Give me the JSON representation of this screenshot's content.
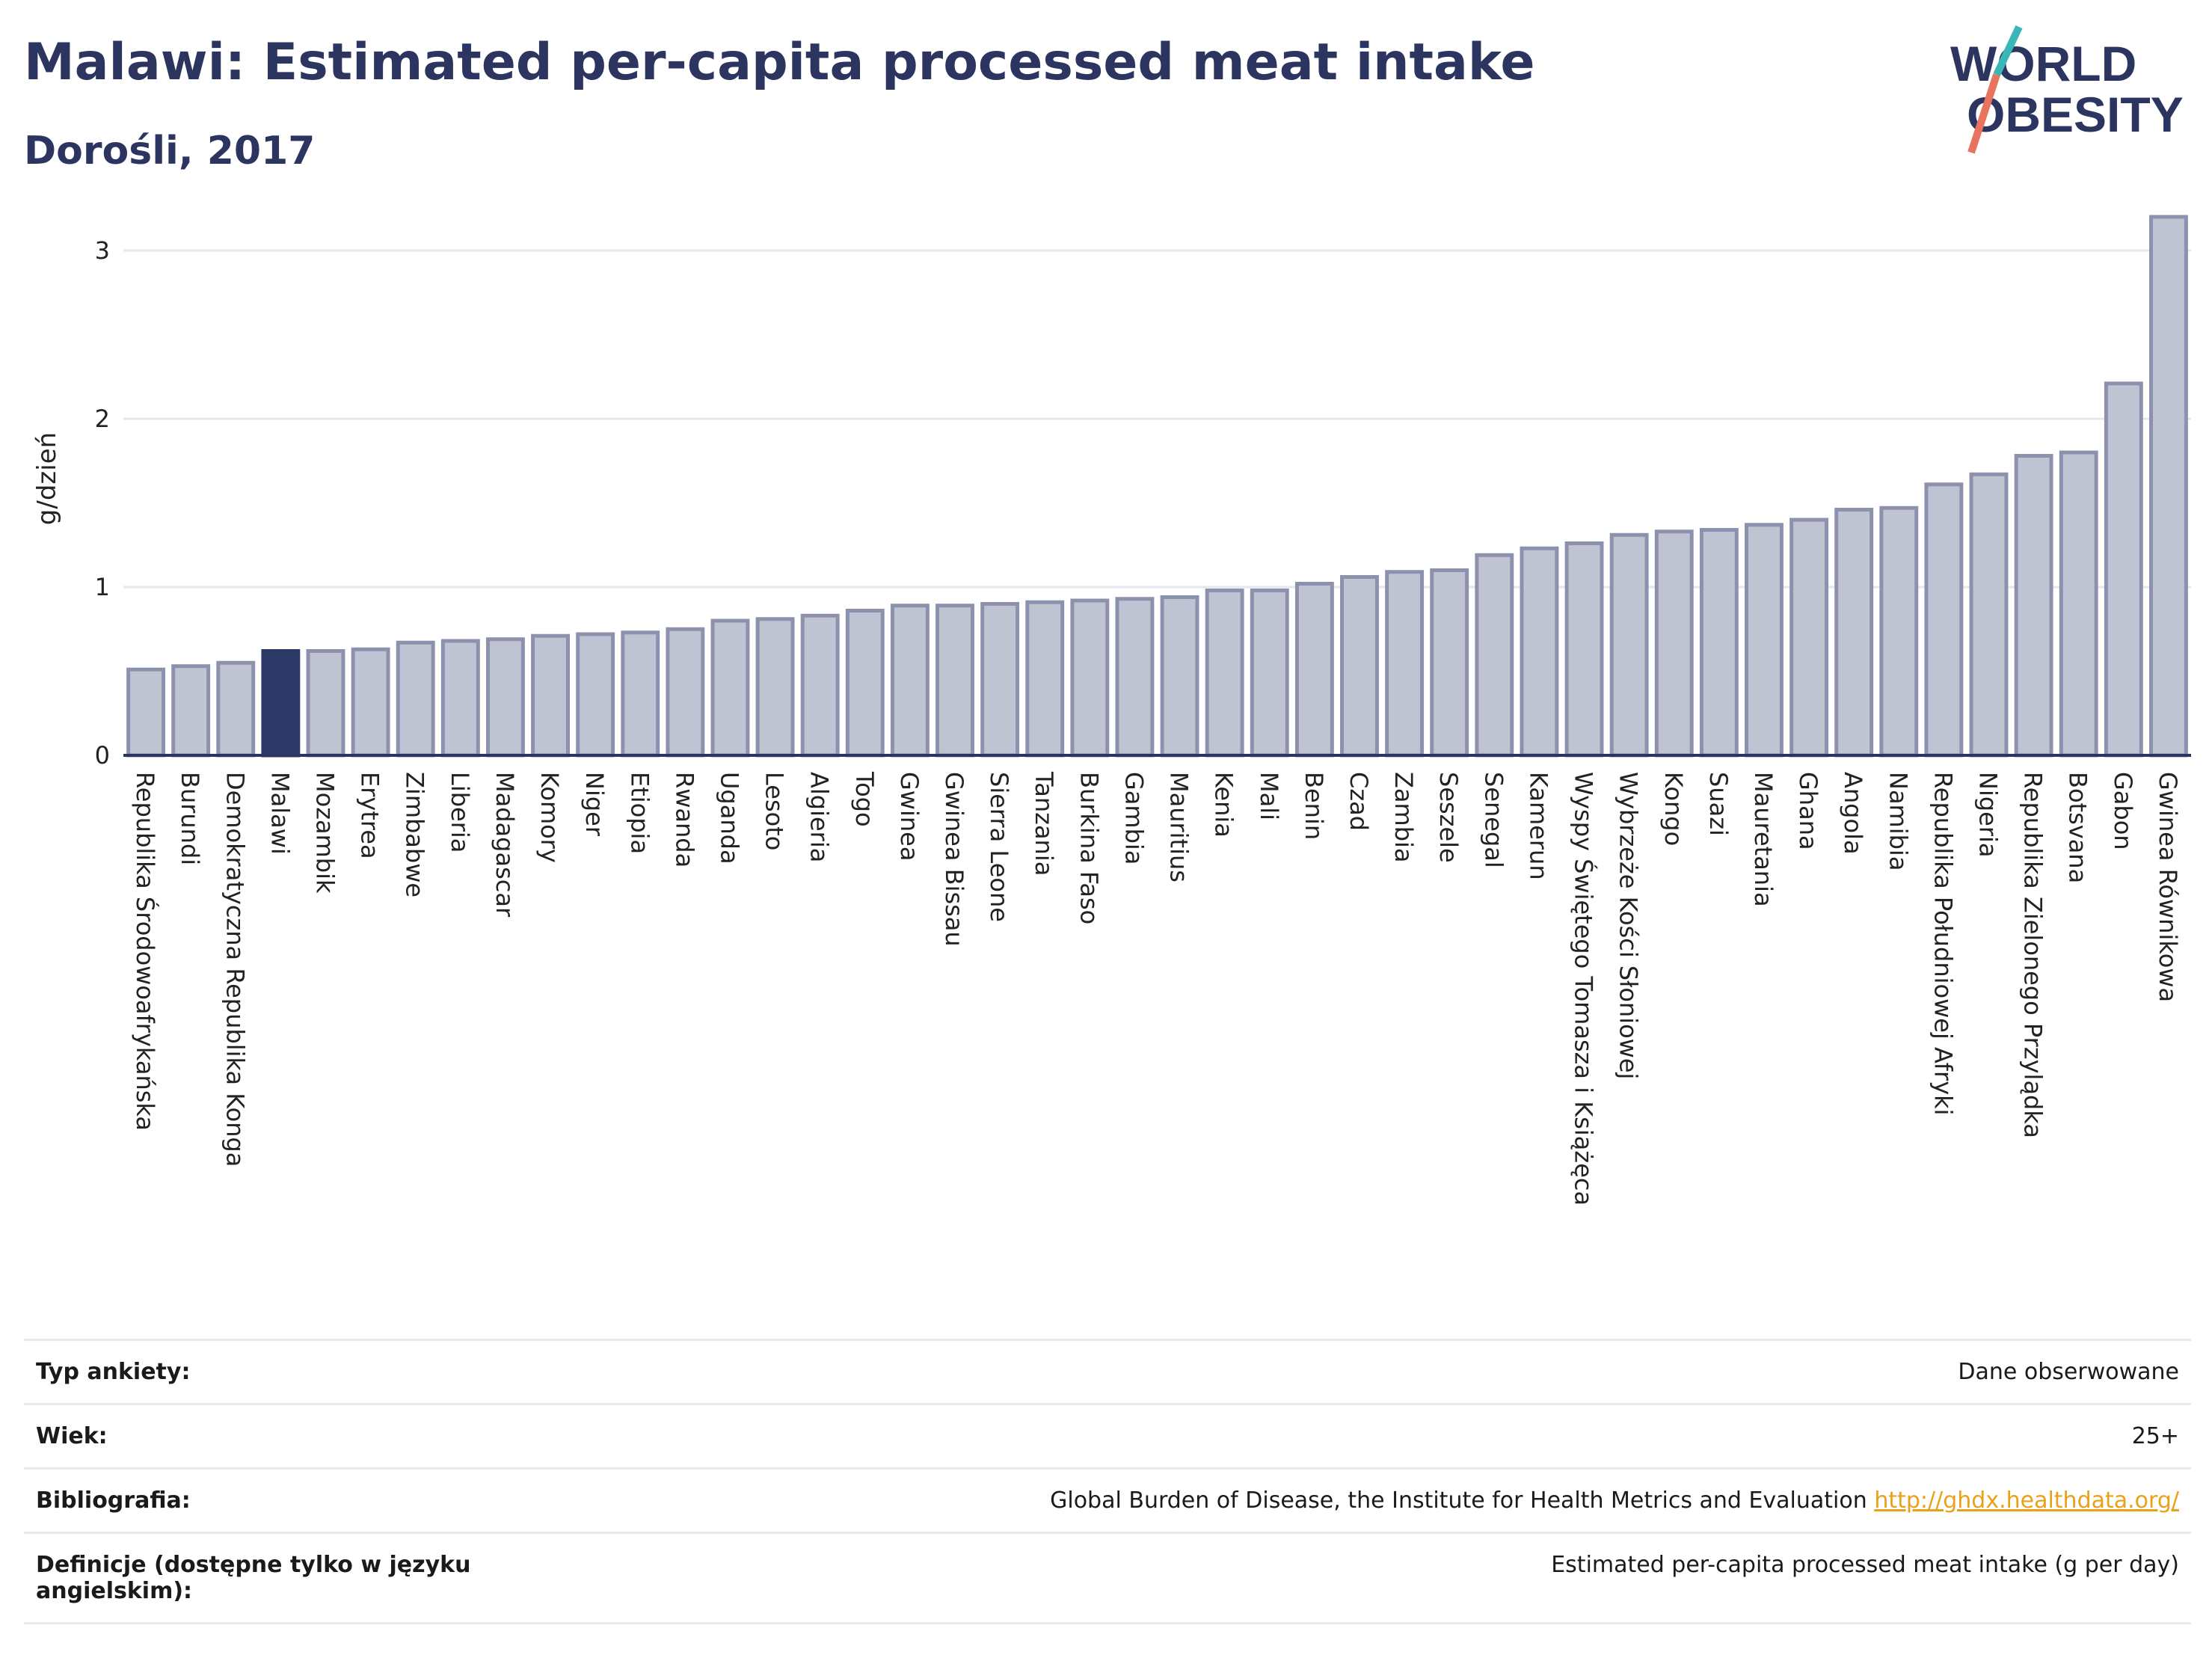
{
  "header": {
    "title": "Malawi: Estimated per-capita processed meat intake",
    "subtitle": "Dorośli, 2017"
  },
  "logo": {
    "line1": "WORLD",
    "line2": "OBESITY",
    "colors": {
      "text": "#2c3560",
      "slash_teal": "#3ab6b8",
      "slash_coral": "#e8735e"
    }
  },
  "colors": {
    "bar_default": "#c0c4d2",
    "bar_default_stroke": "#8c92ad",
    "bar_highlight": "#2c3866",
    "grid": "#e4e7ee",
    "axis": "#2c3560"
  },
  "chart_data": {
    "type": "bar",
    "ylabel": "g/dzień",
    "ylim": [
      0,
      3.2
    ],
    "yticks": [
      0,
      1,
      2,
      3
    ],
    "grid": true,
    "highlight": "Malawi",
    "categories": [
      "Republika Środowoafrykańska",
      "Burundi",
      "Demokratyczna Republika Konga",
      "Malawi",
      "Mozambik",
      "Erytrea",
      "Zimbabwe",
      "Liberia",
      "Madagascar",
      "Komory",
      "Niger",
      "Etiopia",
      "Rwanda",
      "Uganda",
      "Lesoto",
      "Algieria",
      "Togo",
      "Gwinea",
      "Gwinea Bissau",
      "Sierra Leone",
      "Tanzania",
      "Burkina Faso",
      "Gambia",
      "Mauritius",
      "Kenia",
      "Mali",
      "Benin",
      "Czad",
      "Zambia",
      "Seszele",
      "Senegal",
      "Kamerun",
      "Wyspy Świętego Tomasza i Książęca",
      "Wybrzeże Kości Słoniowej",
      "Kongo",
      "Suazi",
      "Mauretania",
      "Ghana",
      "Angola",
      "Namibia",
      "Republika Południowej Afryki",
      "Nigeria",
      "Republika Zielonego Przylądka",
      "Botsvana",
      "Gabon",
      "Gwinea Równikowa"
    ],
    "values": [
      0.51,
      0.53,
      0.55,
      0.62,
      0.62,
      0.63,
      0.67,
      0.68,
      0.69,
      0.71,
      0.72,
      0.73,
      0.75,
      0.8,
      0.81,
      0.83,
      0.86,
      0.89,
      0.89,
      0.9,
      0.91,
      0.92,
      0.93,
      0.94,
      0.98,
      0.98,
      1.02,
      1.06,
      1.09,
      1.1,
      1.19,
      1.23,
      1.26,
      1.31,
      1.33,
      1.34,
      1.37,
      1.4,
      1.46,
      1.47,
      1.61,
      1.67,
      1.78,
      1.8,
      2.21,
      3.2
    ]
  },
  "meta": [
    {
      "key": "Typ ankiety:",
      "value": "Dane obserwowane"
    },
    {
      "key": "Wiek:",
      "value": "25+"
    },
    {
      "key": "Bibliografia:",
      "value": "Global Burden of Disease, the Institute for Health Metrics and Evaluation",
      "link": "http://ghdx.healthdata.org/"
    },
    {
      "key": "Definicje (dostępne tylko w języku angielskim):",
      "value": "Estimated per-capita processed meat intake (g per day)"
    }
  ]
}
